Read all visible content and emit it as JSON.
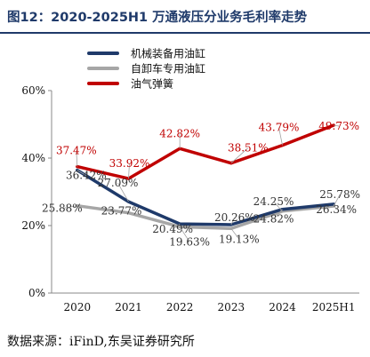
{
  "title": "图12：2020-2025H1 万通液压分业务毛利率走势",
  "source": "数据来源：iFinD,东吴证券研究所",
  "chart_data": {
    "type": "line",
    "x": [
      "2020",
      "2021",
      "2022",
      "2023",
      "2024",
      "2025H1"
    ],
    "y_ticks": [
      "0%",
      "20%",
      "40%",
      "60%"
    ],
    "ylim": [
      0,
      60
    ],
    "grid": false,
    "legend_position": "top-left",
    "series": [
      {
        "name": "机械装备用油缸",
        "color": "#1f3a6a",
        "values": [
          36.42,
          27.09,
          20.49,
          20.26,
          24.82,
          26.34
        ],
        "labels": [
          "36.42%",
          "27.09%",
          "20.49%",
          "20.26%",
          "24.82%",
          "26.34%"
        ]
      },
      {
        "name": "自卸车专用油缸",
        "color": "#a6a6a6",
        "values": [
          25.88,
          23.77,
          19.63,
          19.13,
          24.25,
          25.78
        ],
        "labels": [
          "25.88%",
          "23.77%",
          "19.63%",
          "19.13%",
          "24.25%",
          "25.78%"
        ]
      },
      {
        "name": "油气弹簧",
        "color": "#c00000",
        "values": [
          37.47,
          33.92,
          42.82,
          38.51,
          43.79,
          49.73
        ],
        "labels": [
          "37.47%",
          "33.92%",
          "42.82%",
          "38.51%",
          "43.79%",
          "49.73%"
        ]
      }
    ]
  }
}
